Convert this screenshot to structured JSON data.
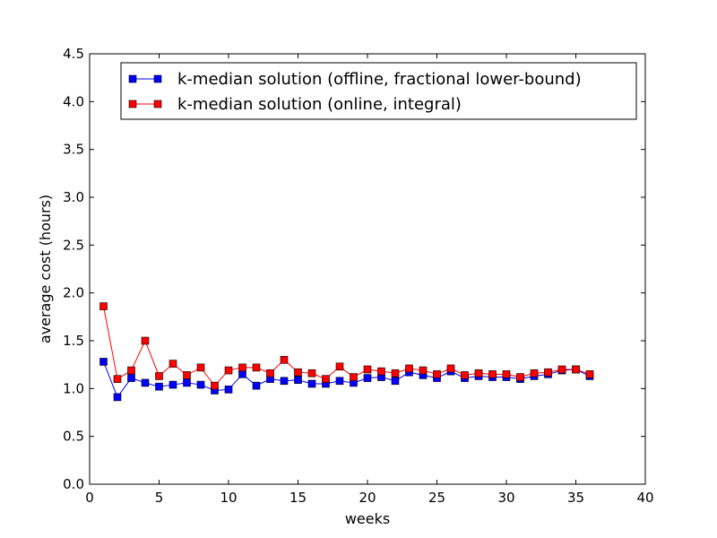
{
  "chart_data": {
    "type": "line",
    "title": "",
    "xlabel": "weeks",
    "ylabel": "average cost (hours)",
    "xlim": [
      0,
      40
    ],
    "ylim": [
      0.0,
      4.5
    ],
    "x_ticks": [
      0,
      5,
      10,
      15,
      20,
      25,
      30,
      35,
      40
    ],
    "x_tick_labels": [
      "0",
      "5",
      "10",
      "15",
      "20",
      "25",
      "30",
      "35",
      "40"
    ],
    "y_ticks": [
      0.0,
      0.5,
      1.0,
      1.5,
      2.0,
      2.5,
      3.0,
      3.5,
      4.0,
      4.5
    ],
    "y_tick_labels": [
      "0.0",
      "0.5",
      "1.0",
      "1.5",
      "2.0",
      "2.5",
      "3.0",
      "3.5",
      "4.0",
      "4.5"
    ],
    "grid": false,
    "legend_position": "top-right",
    "x": [
      1,
      2,
      3,
      4,
      5,
      6,
      7,
      8,
      9,
      10,
      11,
      12,
      13,
      14,
      15,
      16,
      17,
      18,
      19,
      20,
      21,
      22,
      23,
      24,
      25,
      26,
      27,
      28,
      29,
      30,
      31,
      32,
      33,
      34,
      35,
      36
    ],
    "series": [
      {
        "name": "k-median solution (offline, fractional lower-bound)",
        "color": "#0000ff",
        "marker": "square",
        "values": [
          1.28,
          0.91,
          1.11,
          1.06,
          1.02,
          1.04,
          1.06,
          1.04,
          0.98,
          0.99,
          1.15,
          1.03,
          1.1,
          1.08,
          1.09,
          1.05,
          1.05,
          1.08,
          1.06,
          1.11,
          1.12,
          1.08,
          1.17,
          1.14,
          1.11,
          1.18,
          1.11,
          1.13,
          1.12,
          1.12,
          1.1,
          1.13,
          1.15,
          1.19,
          1.2,
          1.13
        ]
      },
      {
        "name": "k-median solution (online, integral)",
        "color": "#ff0000",
        "marker": "square",
        "values": [
          1.86,
          1.1,
          1.19,
          1.5,
          1.13,
          1.26,
          1.14,
          1.22,
          1.03,
          1.19,
          1.22,
          1.22,
          1.16,
          1.3,
          1.17,
          1.16,
          1.1,
          1.23,
          1.12,
          1.2,
          1.18,
          1.16,
          1.21,
          1.19,
          1.15,
          1.21,
          1.14,
          1.16,
          1.15,
          1.15,
          1.12,
          1.16,
          1.17,
          1.2,
          1.2,
          1.15
        ]
      }
    ]
  }
}
